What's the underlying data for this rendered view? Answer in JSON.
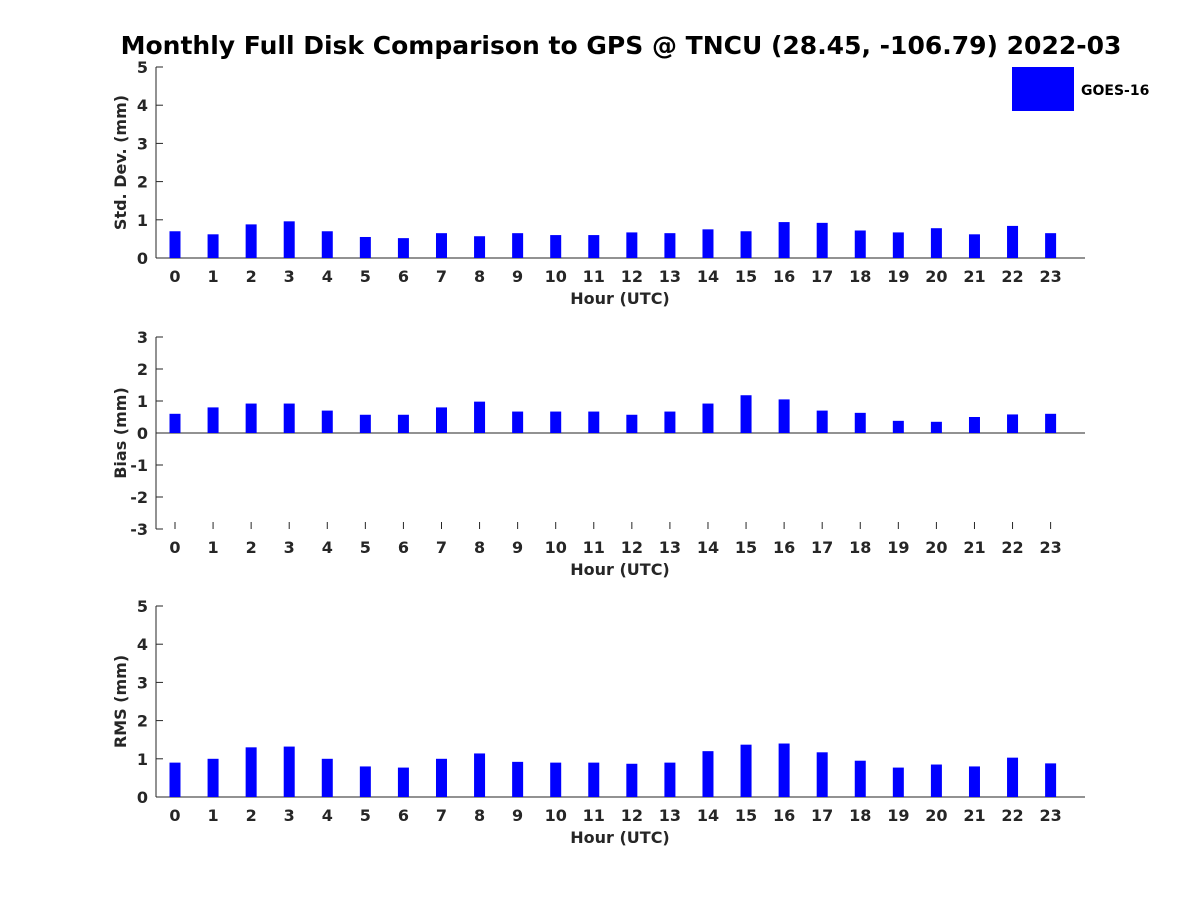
{
  "title": "Monthly Full Disk Comparison to GPS @ TNCU (28.45, -106.79) 2022-03",
  "legend": {
    "label": "GOES-16",
    "color": "#0000ff",
    "placement": "top-right"
  },
  "chart_data": [
    {
      "type": "bar",
      "xlabel": "Hour (UTC)",
      "ylabel": "Std. Dev. (mm)",
      "categories": [
        "0",
        "1",
        "2",
        "3",
        "4",
        "5",
        "6",
        "7",
        "8",
        "9",
        "10",
        "11",
        "12",
        "13",
        "14",
        "15",
        "16",
        "17",
        "18",
        "19",
        "20",
        "21",
        "22",
        "23"
      ],
      "series": [
        {
          "name": "GOES-16",
          "values": [
            0.7,
            0.62,
            0.88,
            0.96,
            0.7,
            0.55,
            0.52,
            0.65,
            0.57,
            0.65,
            0.6,
            0.6,
            0.67,
            0.65,
            0.75,
            0.7,
            0.94,
            0.92,
            0.72,
            0.67,
            0.78,
            0.62,
            0.84,
            0.65
          ]
        }
      ],
      "ylim": [
        0,
        5
      ],
      "yticks": [
        0,
        1,
        2,
        3,
        4,
        5
      ]
    },
    {
      "type": "bar",
      "xlabel": "Hour (UTC)",
      "ylabel": "Bias (mm)",
      "categories": [
        "0",
        "1",
        "2",
        "3",
        "4",
        "5",
        "6",
        "7",
        "8",
        "9",
        "10",
        "11",
        "12",
        "13",
        "14",
        "15",
        "16",
        "17",
        "18",
        "19",
        "20",
        "21",
        "22",
        "23"
      ],
      "series": [
        {
          "name": "GOES-16",
          "values": [
            0.6,
            0.8,
            0.92,
            0.92,
            0.7,
            0.57,
            0.57,
            0.8,
            0.98,
            0.67,
            0.67,
            0.67,
            0.57,
            0.67,
            0.92,
            1.18,
            1.05,
            0.7,
            0.63,
            0.38,
            0.35,
            0.5,
            0.58,
            0.6
          ]
        }
      ],
      "ylim": [
        -3,
        3
      ],
      "yticks": [
        -3,
        -2,
        -1,
        0,
        1,
        2,
        3
      ]
    },
    {
      "type": "bar",
      "xlabel": "Hour (UTC)",
      "ylabel": "RMS (mm)",
      "categories": [
        "0",
        "1",
        "2",
        "3",
        "4",
        "5",
        "6",
        "7",
        "8",
        "9",
        "10",
        "11",
        "12",
        "13",
        "14",
        "15",
        "16",
        "17",
        "18",
        "19",
        "20",
        "21",
        "22",
        "23"
      ],
      "series": [
        {
          "name": "GOES-16",
          "values": [
            0.9,
            1.0,
            1.3,
            1.32,
            1.0,
            0.8,
            0.77,
            1.0,
            1.14,
            0.92,
            0.9,
            0.9,
            0.87,
            0.9,
            1.2,
            1.37,
            1.4,
            1.17,
            0.95,
            0.77,
            0.85,
            0.8,
            1.03,
            0.88
          ]
        }
      ],
      "ylim": [
        0,
        5
      ],
      "yticks": [
        0,
        1,
        2,
        3,
        4,
        5
      ]
    }
  ]
}
